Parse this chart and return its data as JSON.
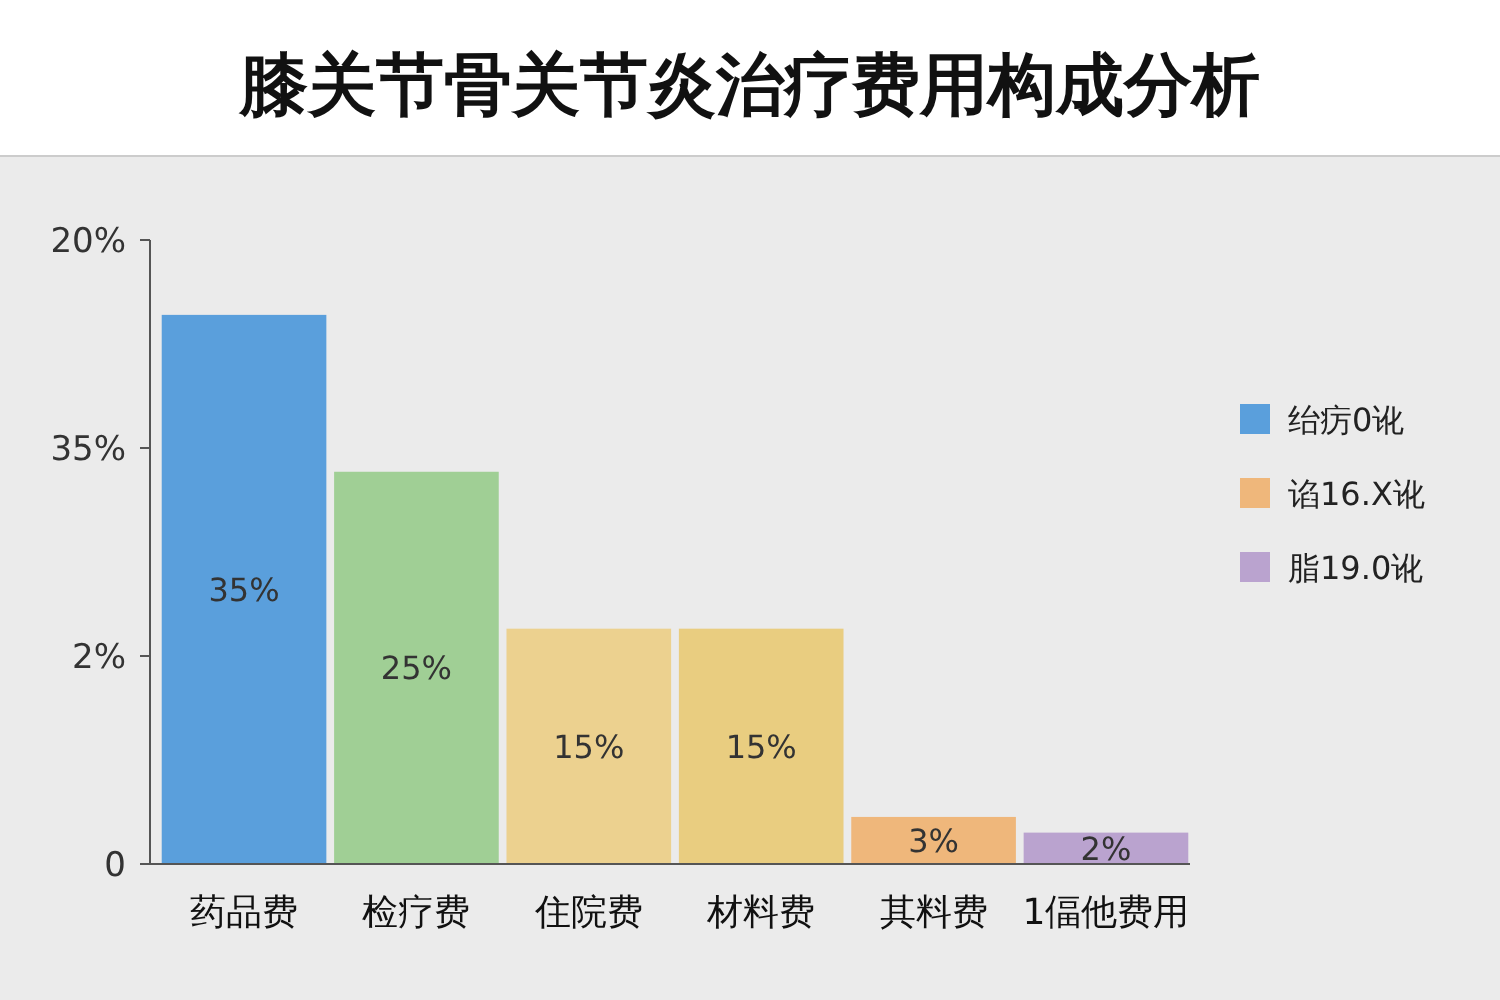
{
  "chart_data": {
    "type": "bar",
    "title": "膝关节骨关节炎治疗费用构成分析",
    "categories": [
      "药品费",
      "检疗费",
      "住院费",
      "材料费",
      "其料费",
      "1偪他费用"
    ],
    "legend": "right",
    "annotations": [
      "20%",
      "35%",
      "2%",
      "0"
    ],
    "series": [
      {
        "name": "绐疠0讹",
        "color": "#5a9fdc",
        "values": [
          35,
          null,
          null,
          null,
          null,
          null
        ],
        "value_labels": [
          "35%",
          null,
          null,
          null,
          null,
          null
        ]
      },
      {
        "colors": [
          null,
          "#a0cf95",
          "#ecd18f",
          "#e9cd80",
          null,
          null
        ],
        "values": [
          null,
          25,
          15,
          15,
          null,
          null
        ],
        "value_labels": [
          null,
          "25%",
          "15%",
          "15%",
          null,
          null
        ]
      },
      {
        "name": "谄16.X讹",
        "color": "#efb77b",
        "values": [
          null,
          null,
          null,
          null,
          3,
          null
        ],
        "value_labels": [
          null,
          null,
          null,
          null,
          "3%",
          null
        ]
      },
      {
        "name": "脂19.0讹",
        "color": "#baa3cf",
        "values": [
          null,
          null,
          null,
          null,
          null,
          2
        ],
        "value_labels": [
          null,
          null,
          null,
          null,
          null,
          "2%"
        ]
      }
    ]
  }
}
